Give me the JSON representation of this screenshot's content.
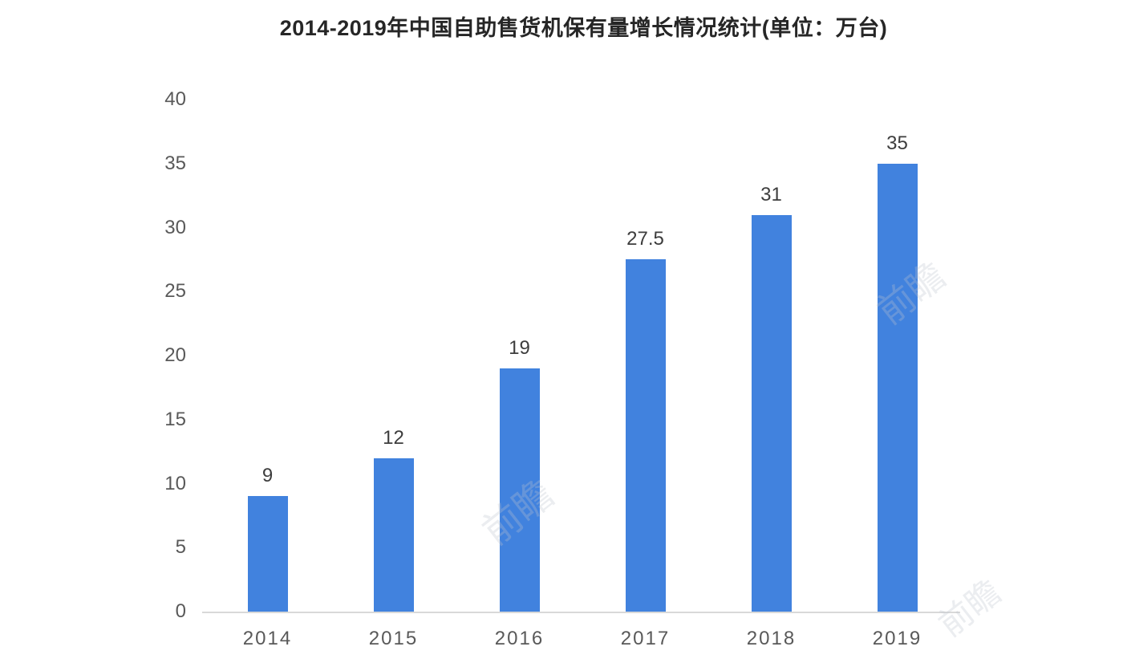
{
  "chart_data": {
    "type": "bar",
    "title": "2014-2019年中国自助售货机保有量增长情况统计(单位：万台)",
    "categories": [
      "2014",
      "2015",
      "2016",
      "2017",
      "2018",
      "2019"
    ],
    "values": [
      9,
      12,
      19,
      27.5,
      31,
      35
    ],
    "value_labels": [
      "9",
      "12",
      "19",
      "27.5",
      "31",
      "35"
    ],
    "xlabel": "",
    "ylabel": "",
    "unit": "万台",
    "ylim": [
      0,
      40
    ],
    "yticks": [
      0,
      5,
      10,
      15,
      20,
      25,
      30,
      35,
      40
    ],
    "grid": false,
    "legend_position": "none",
    "bar_color": "#4182de",
    "axis_line_color": "#d9d9d9",
    "value_label_color": "#3d3d3d",
    "tick_label_color": "#595959",
    "title_color": "#262626"
  },
  "watermarks": [
    {
      "text": "前瞻"
    },
    {
      "text": "前瞻"
    },
    {
      "text": "前瞻"
    }
  ]
}
